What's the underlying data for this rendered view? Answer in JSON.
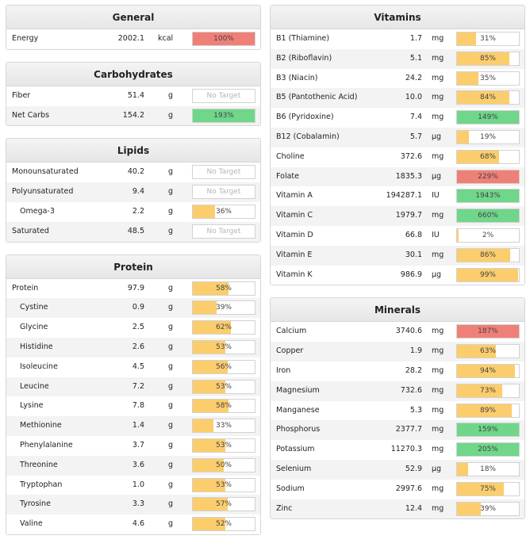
{
  "colors": {
    "yellow": "#fbcd6c",
    "green": "#6fd68a",
    "red": "#ef8078"
  },
  "general": {
    "title": "General",
    "rows": [
      {
        "name": "Energy",
        "amount": "2002.1",
        "unit": "kcal",
        "label": "100%",
        "fill": 1.0,
        "color": "red"
      }
    ]
  },
  "carbohydrates": {
    "title": "Carbohydrates",
    "rows": [
      {
        "name": "Fiber",
        "amount": "51.4",
        "unit": "g",
        "label": "No Target",
        "fill": 0,
        "color": "none"
      },
      {
        "name": "Net Carbs",
        "amount": "154.2",
        "unit": "g",
        "label": "193%",
        "fill": 1.0,
        "color": "green"
      }
    ]
  },
  "lipids": {
    "title": "Lipids",
    "rows": [
      {
        "name": "Monounsaturated",
        "amount": "40.2",
        "unit": "g",
        "label": "No Target",
        "fill": 0,
        "color": "none"
      },
      {
        "name": "Polyunsaturated",
        "amount": "9.4",
        "unit": "g",
        "label": "No Target",
        "fill": 0,
        "color": "none"
      },
      {
        "name": "Omega-3",
        "amount": "2.2",
        "unit": "g",
        "label": "36%",
        "fill": 0.36,
        "color": "yellow",
        "indent": true
      },
      {
        "name": "Saturated",
        "amount": "48.5",
        "unit": "g",
        "label": "No Target",
        "fill": 0,
        "color": "none"
      }
    ]
  },
  "protein": {
    "title": "Protein",
    "rows": [
      {
        "name": "Protein",
        "amount": "97.9",
        "unit": "g",
        "label": "58%",
        "fill": 0.58,
        "color": "yellow"
      },
      {
        "name": "Cystine",
        "amount": "0.9",
        "unit": "g",
        "label": "39%",
        "fill": 0.39,
        "color": "yellow",
        "indent": true
      },
      {
        "name": "Glycine",
        "amount": "2.5",
        "unit": "g",
        "label": "62%",
        "fill": 0.62,
        "color": "yellow",
        "indent": true
      },
      {
        "name": "Histidine",
        "amount": "2.6",
        "unit": "g",
        "label": "53%",
        "fill": 0.53,
        "color": "yellow",
        "indent": true
      },
      {
        "name": "Isoleucine",
        "amount": "4.5",
        "unit": "g",
        "label": "56%",
        "fill": 0.56,
        "color": "yellow",
        "indent": true
      },
      {
        "name": "Leucine",
        "amount": "7.2",
        "unit": "g",
        "label": "53%",
        "fill": 0.53,
        "color": "yellow",
        "indent": true
      },
      {
        "name": "Lysine",
        "amount": "7.8",
        "unit": "g",
        "label": "58%",
        "fill": 0.58,
        "color": "yellow",
        "indent": true
      },
      {
        "name": "Methionine",
        "amount": "1.4",
        "unit": "g",
        "label": "33%",
        "fill": 0.33,
        "color": "yellow",
        "indent": true
      },
      {
        "name": "Phenylalanine",
        "amount": "3.7",
        "unit": "g",
        "label": "53%",
        "fill": 0.53,
        "color": "yellow",
        "indent": true
      },
      {
        "name": "Threonine",
        "amount": "3.6",
        "unit": "g",
        "label": "50%",
        "fill": 0.5,
        "color": "yellow",
        "indent": true
      },
      {
        "name": "Tryptophan",
        "amount": "1.0",
        "unit": "g",
        "label": "53%",
        "fill": 0.53,
        "color": "yellow",
        "indent": true
      },
      {
        "name": "Tyrosine",
        "amount": "3.3",
        "unit": "g",
        "label": "57%",
        "fill": 0.57,
        "color": "yellow",
        "indent": true
      },
      {
        "name": "Valine",
        "amount": "4.6",
        "unit": "g",
        "label": "52%",
        "fill": 0.52,
        "color": "yellow",
        "indent": true
      }
    ]
  },
  "vitamins": {
    "title": "Vitamins",
    "rows": [
      {
        "name": "B1 (Thiamine)",
        "amount": "1.7",
        "unit": "mg",
        "label": "31%",
        "fill": 0.31,
        "color": "yellow"
      },
      {
        "name": "B2 (Riboflavin)",
        "amount": "5.1",
        "unit": "mg",
        "label": "85%",
        "fill": 0.85,
        "color": "yellow"
      },
      {
        "name": "B3 (Niacin)",
        "amount": "24.2",
        "unit": "mg",
        "label": "35%",
        "fill": 0.35,
        "color": "yellow"
      },
      {
        "name": "B5 (Pantothenic Acid)",
        "amount": "10.0",
        "unit": "mg",
        "label": "84%",
        "fill": 0.84,
        "color": "yellow"
      },
      {
        "name": "B6 (Pyridoxine)",
        "amount": "7.4",
        "unit": "mg",
        "label": "149%",
        "fill": 1.0,
        "color": "green"
      },
      {
        "name": "B12 (Cobalamin)",
        "amount": "5.7",
        "unit": "µg",
        "label": "19%",
        "fill": 0.19,
        "color": "yellow"
      },
      {
        "name": "Choline",
        "amount": "372.6",
        "unit": "mg",
        "label": "68%",
        "fill": 0.68,
        "color": "yellow"
      },
      {
        "name": "Folate",
        "amount": "1835.3",
        "unit": "µg",
        "label": "229%",
        "fill": 1.0,
        "color": "red"
      },
      {
        "name": "Vitamin A",
        "amount": "194287.1",
        "unit": "IU",
        "label": "1943%",
        "fill": 1.0,
        "color": "green"
      },
      {
        "name": "Vitamin C",
        "amount": "1979.7",
        "unit": "mg",
        "label": "660%",
        "fill": 1.0,
        "color": "green"
      },
      {
        "name": "Vitamin D",
        "amount": "66.8",
        "unit": "IU",
        "label": "2%",
        "fill": 0.02,
        "color": "yellow"
      },
      {
        "name": "Vitamin E",
        "amount": "30.1",
        "unit": "mg",
        "label": "86%",
        "fill": 0.86,
        "color": "yellow"
      },
      {
        "name": "Vitamin K",
        "amount": "986.9",
        "unit": "µg",
        "label": "99%",
        "fill": 0.99,
        "color": "yellow"
      }
    ]
  },
  "minerals": {
    "title": "Minerals",
    "rows": [
      {
        "name": "Calcium",
        "amount": "3740.6",
        "unit": "mg",
        "label": "187%",
        "fill": 1.0,
        "color": "red"
      },
      {
        "name": "Copper",
        "amount": "1.9",
        "unit": "mg",
        "label": "63%",
        "fill": 0.63,
        "color": "yellow"
      },
      {
        "name": "Iron",
        "amount": "28.2",
        "unit": "mg",
        "label": "94%",
        "fill": 0.94,
        "color": "yellow"
      },
      {
        "name": "Magnesium",
        "amount": "732.6",
        "unit": "mg",
        "label": "73%",
        "fill": 0.73,
        "color": "yellow"
      },
      {
        "name": "Manganese",
        "amount": "5.3",
        "unit": "mg",
        "label": "89%",
        "fill": 0.89,
        "color": "yellow"
      },
      {
        "name": "Phosphorus",
        "amount": "2377.7",
        "unit": "mg",
        "label": "159%",
        "fill": 1.0,
        "color": "green"
      },
      {
        "name": "Potassium",
        "amount": "11270.3",
        "unit": "mg",
        "label": "205%",
        "fill": 1.0,
        "color": "green"
      },
      {
        "name": "Selenium",
        "amount": "52.9",
        "unit": "µg",
        "label": "18%",
        "fill": 0.18,
        "color": "yellow"
      },
      {
        "name": "Sodium",
        "amount": "2997.6",
        "unit": "mg",
        "label": "75%",
        "fill": 0.75,
        "color": "yellow"
      },
      {
        "name": "Zinc",
        "amount": "12.4",
        "unit": "mg",
        "label": "39%",
        "fill": 0.39,
        "color": "yellow"
      }
    ]
  }
}
